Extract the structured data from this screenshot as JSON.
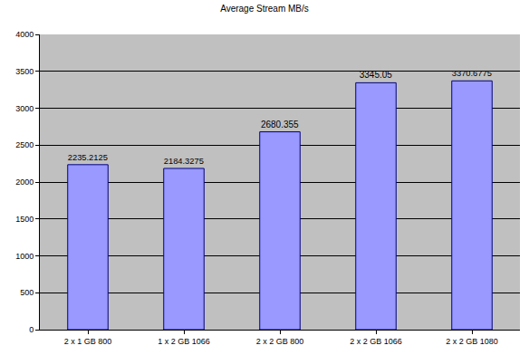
{
  "chart_data": {
    "type": "bar",
    "title": "Average Stream MB/s",
    "categories": [
      "2 x 1 GB 800",
      "1 x 2 GB 1066",
      "2 x 2 GB 800",
      "2 x 2 GB 1066",
      "2 x 2 GB 1080"
    ],
    "values": [
      2235.2125,
      2184.3275,
      2680.355,
      3345.05,
      3370.6775
    ],
    "color": "#9999ff",
    "ylim": [
      0,
      4000
    ],
    "yticks": [
      0,
      500,
      1000,
      1500,
      2000,
      2500,
      3000,
      3500,
      4000
    ],
    "grid": true,
    "data_labels": true
  }
}
